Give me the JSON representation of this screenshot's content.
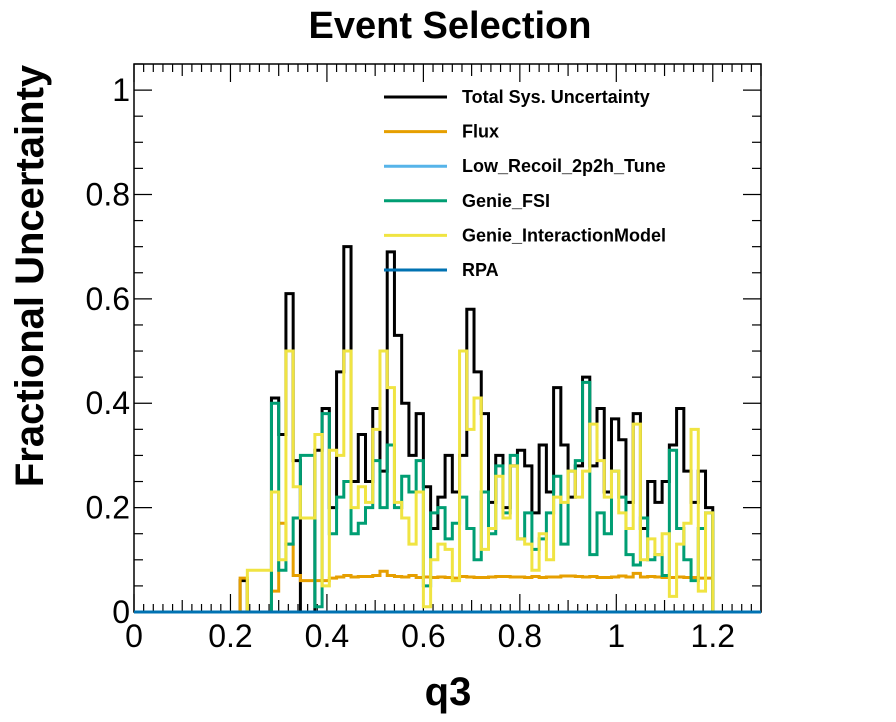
{
  "chart_data": {
    "type": "line",
    "title": "Event Selection",
    "xlabel": "q3",
    "ylabel": "Fractional Uncertainty",
    "xlim": [
      0,
      1.3
    ],
    "ylim": [
      0,
      1.05
    ],
    "x_ticks": [
      "0",
      "0.2",
      "0.4",
      "0.6",
      "0.8",
      "1",
      "1.2"
    ],
    "y_ticks": [
      "0",
      "0.2",
      "0.4",
      "0.6",
      "0.8",
      "1"
    ],
    "legend_position": "top-right",
    "bin_edges": [
      0.22,
      0.235,
      0.285,
      0.3,
      0.315,
      0.33,
      0.345,
      0.375,
      0.39,
      0.405,
      0.42,
      0.435,
      0.45,
      0.465,
      0.48,
      0.495,
      0.51,
      0.525,
      0.54,
      0.555,
      0.57,
      0.585,
      0.6,
      0.615,
      0.63,
      0.645,
      0.66,
      0.675,
      0.69,
      0.705,
      0.72,
      0.735,
      0.75,
      0.765,
      0.78,
      0.795,
      0.81,
      0.825,
      0.84,
      0.855,
      0.87,
      0.885,
      0.9,
      0.915,
      0.93,
      0.945,
      0.96,
      0.975,
      0.99,
      1.005,
      1.02,
      1.035,
      1.05,
      1.065,
      1.08,
      1.095,
      1.11,
      1.125,
      1.14,
      1.155,
      1.17,
      1.185,
      1.2
    ],
    "series": [
      {
        "name": "Total Sys. Uncertainty",
        "color": "#000000",
        "values": [
          0.06,
          0,
          0.41,
          0.34,
          0.61,
          0.29,
          0,
          0.31,
          0.39,
          0.2,
          0.46,
          0.7,
          0.25,
          0.34,
          0.25,
          0.39,
          0.27,
          0.69,
          0.53,
          0.4,
          0.3,
          0.38,
          0.24,
          0.16,
          0.22,
          0.3,
          0.23,
          0.3,
          0.58,
          0.46,
          0.38,
          0.21,
          0.3,
          0.2,
          0.28,
          0.31,
          0.28,
          0.19,
          0.32,
          0.23,
          0.43,
          0.32,
          0.22,
          0.28,
          0.45,
          0.28,
          0.39,
          0.23,
          0.37,
          0.33,
          0.21,
          0.38,
          0.16,
          0.25,
          0.21,
          0.25,
          0.32,
          0.39,
          0.27,
          0.21,
          0.27,
          0.2
        ]
      },
      {
        "name": "Flux",
        "color": "#E69F00",
        "values": [
          0.065,
          0,
          0.04,
          0.17,
          0.13,
          0.07,
          0.06,
          0.06,
          0.06,
          0.065,
          0.067,
          0.07,
          0.067,
          0.068,
          0.068,
          0.07,
          0.078,
          0.07,
          0.068,
          0.067,
          0.07,
          0.066,
          0.067,
          0.066,
          0.067,
          0.066,
          0.065,
          0.068,
          0.067,
          0.066,
          0.066,
          0.067,
          0.068,
          0.068,
          0.067,
          0.067,
          0.066,
          0.068,
          0.066,
          0.067,
          0.067,
          0.069,
          0.069,
          0.068,
          0.067,
          0.068,
          0.066,
          0.066,
          0.067,
          0.069,
          0.067,
          0.074,
          0.067,
          0.068,
          0.067,
          0.066,
          0.066,
          0.067,
          0.066,
          0.066,
          0.065,
          0.065
        ]
      },
      {
        "name": "Low_Recoil_2p2h_Tune",
        "color": "#56B4E9",
        "values": [
          0,
          0,
          0,
          0,
          0,
          0,
          0,
          0,
          0,
          0,
          0,
          0,
          0,
          0,
          0,
          0,
          0,
          0,
          0,
          0,
          0,
          0,
          0,
          0,
          0,
          0,
          0,
          0,
          0,
          0,
          0,
          0,
          0,
          0,
          0,
          0,
          0,
          0,
          0,
          0,
          0,
          0,
          0,
          0,
          0,
          0,
          0,
          0,
          0,
          0,
          0,
          0,
          0,
          0,
          0,
          0,
          0,
          0,
          0,
          0,
          0,
          0
        ]
      },
      {
        "name": "Genie_FSI",
        "color": "#009E73",
        "values": [
          0,
          0,
          0.4,
          0.08,
          0.13,
          0.18,
          0.3,
          0.01,
          0.38,
          0.15,
          0.22,
          0.25,
          0.15,
          0.17,
          0.2,
          0.29,
          0.2,
          0.32,
          0.2,
          0.26,
          0.23,
          0.29,
          0.05,
          0.19,
          0.2,
          0.14,
          0.17,
          0.22,
          0.16,
          0.1,
          0.23,
          0.15,
          0.28,
          0.19,
          0.3,
          0.14,
          0.19,
          0.12,
          0.14,
          0.19,
          0.26,
          0.13,
          0.27,
          0.29,
          0.44,
          0.11,
          0.19,
          0.15,
          0.27,
          0.22,
          0.11,
          0.09,
          0.18,
          0.1,
          0.11,
          0.07,
          0.31,
          0.16,
          0.1,
          0.06,
          0.16,
          0.19
        ]
      },
      {
        "name": "Genie_InteractionModel",
        "color": "#F0E442",
        "values": [
          0,
          0.08,
          0.23,
          0.1,
          0.5,
          0.24,
          0.18,
          0.34,
          0.05,
          0.31,
          0.3,
          0.5,
          0.2,
          0.24,
          0.21,
          0.35,
          0.5,
          0.43,
          0.21,
          0.18,
          0.13,
          0.23,
          0.01,
          0.1,
          0.13,
          0.12,
          0.06,
          0.5,
          0.35,
          0.41,
          0.12,
          0.16,
          0.26,
          0.18,
          0.28,
          0.14,
          0.13,
          0.08,
          0.15,
          0.1,
          0.22,
          0.21,
          0.27,
          0.22,
          0.27,
          0.36,
          0.29,
          0.22,
          0.27,
          0.19,
          0.16,
          0.36,
          0.1,
          0.14,
          0.11,
          0.15,
          0.03,
          0.13,
          0.17,
          0.35,
          0.04,
          0.19
        ]
      },
      {
        "name": "RPA",
        "color": "#0072B2",
        "values": [
          0,
          0,
          0,
          0,
          0,
          0,
          0,
          0,
          0,
          0,
          0,
          0,
          0,
          0,
          0,
          0,
          0,
          0,
          0,
          0,
          0,
          0,
          0,
          0,
          0,
          0,
          0,
          0,
          0,
          0,
          0,
          0,
          0,
          0,
          0,
          0,
          0,
          0,
          0,
          0,
          0,
          0,
          0,
          0,
          0,
          0,
          0,
          0,
          0,
          0,
          0,
          0,
          0,
          0,
          0,
          0,
          0,
          0,
          0,
          0,
          0,
          0
        ]
      }
    ]
  }
}
